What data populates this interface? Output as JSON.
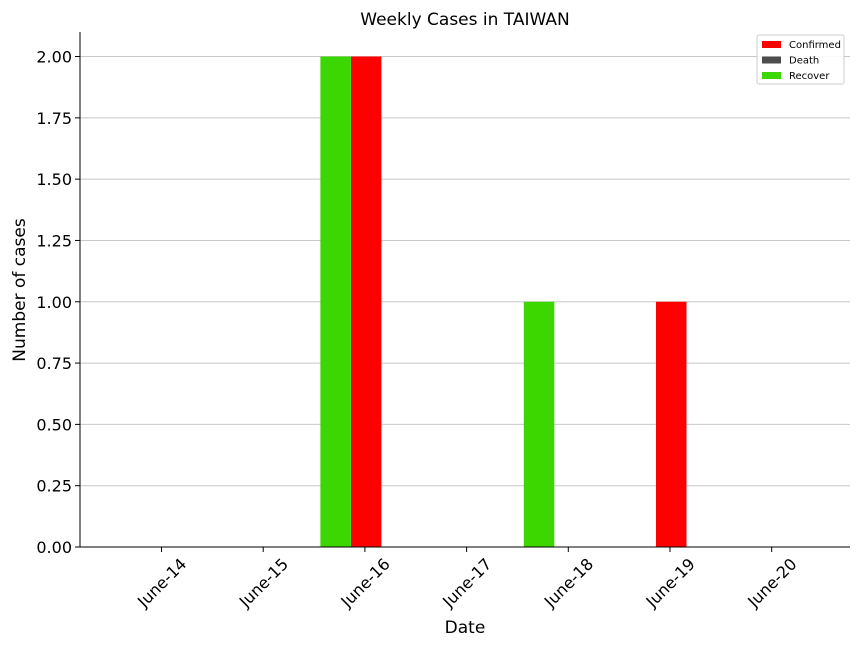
{
  "chart_data": {
    "type": "bar",
    "title": "Weekly Cases in TAIWAN",
    "xlabel": "Date",
    "ylabel": "Number of cases",
    "categories": [
      "June-14",
      "June-15",
      "June-16",
      "June-17",
      "June-18",
      "June-19",
      "June-20"
    ],
    "series": [
      {
        "name": "Confirmed",
        "color": "#ff0000",
        "values": [
          0,
          0,
          2,
          0,
          0,
          1,
          0
        ]
      },
      {
        "name": "Death",
        "color": "#4d4d4d",
        "values": [
          0,
          0,
          0,
          0,
          0,
          0,
          0
        ]
      },
      {
        "name": "Recover",
        "color": "#3cd700",
        "values": [
          0,
          0,
          2,
          0,
          1,
          0,
          0
        ]
      }
    ],
    "ylim": [
      0,
      2.1
    ],
    "yticks": [
      "0.00",
      "0.25",
      "0.50",
      "0.75",
      "1.00",
      "1.25",
      "1.50",
      "1.75",
      "2.00"
    ],
    "grid": "horizontal",
    "legend_position": "top-right",
    "xtick_rotation": 45
  }
}
